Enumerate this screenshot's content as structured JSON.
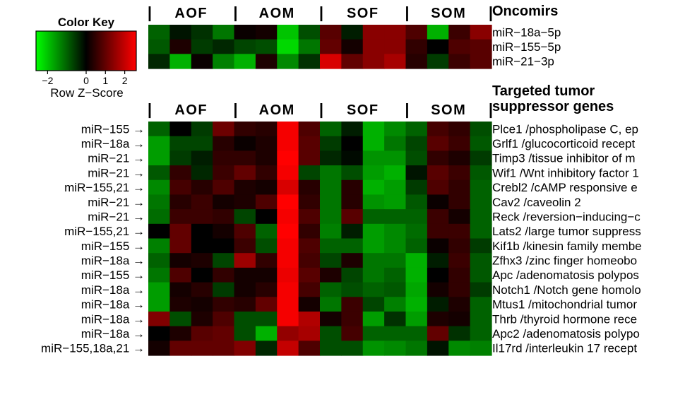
{
  "chart_data": {
    "type": "heatmap",
    "groups": [
      "AOF",
      "AOM",
      "SOF",
      "SOM"
    ],
    "group_separator": "|",
    "color_key": {
      "title": "Color Key",
      "label": "Row Z−Score",
      "ticks": [
        "−2",
        "0",
        "1",
        "2"
      ],
      "range": [
        -2.6,
        2.6
      ],
      "low_color": "#00ff00",
      "mid_color": "#000000",
      "high_color": "#ff0000"
    },
    "top_heatmap": {
      "title": "Oncomirs",
      "rows": [
        "miR−18a−5p",
        "miR−155−5p",
        "miR−21−3p"
      ],
      "values": [
        [
          -1.0,
          -0.2,
          -0.5,
          -1.2,
          0.1,
          0.2,
          -2.0,
          -0.8,
          0.9,
          -0.3,
          1.4,
          1.4,
          0.8,
          -1.8,
          0.6,
          1.4
        ],
        [
          -0.9,
          0.3,
          -0.6,
          -0.4,
          -0.7,
          -0.8,
          -2.2,
          -1.2,
          1.0,
          0.2,
          1.4,
          1.4,
          0.5,
          0.0,
          0.8,
          0.9
        ],
        [
          -0.4,
          -1.8,
          0.1,
          -1.3,
          -1.8,
          0.3,
          -1.4,
          -0.5,
          2.2,
          1.0,
          1.4,
          1.7,
          0.4,
          -0.6,
          0.6,
          0.9
        ]
      ]
    },
    "bottom_heatmap": {
      "title_line1": "Targeted tumor",
      "title_line2": "suppressor genes",
      "row_labels": [
        "miR−155 →",
        "miR−18a →",
        "miR−21 →",
        "miR−21 →",
        "miR−155,21 →",
        "miR−21 →",
        "miR−21 →",
        "miR−155,21 →",
        "miR−155 →",
        "miR−18a →",
        "miR−155 →",
        "miR−18a →",
        "miR−18a →",
        "miR−18a →",
        "miR−18a →",
        "miR−155,18a,21 →"
      ],
      "rows": [
        "Plce1 /phospholipase C, ep",
        "Grlf1 /glucocorticoid recept",
        "Timp3 /tissue inhibitor of m",
        "Wif1 /Wnt inhibitory factor 1",
        "Crebl2 /cAMP responsive e",
        "Cav2 /caveolin 2",
        "Reck /reversion−inducing−c",
        "Lats2 /large tumor suppress",
        "Kif1b /kinesin family membe",
        "Zfhx3 /zinc finger homeobo",
        "Apc /adenomatosis polypos",
        "Notch1 /Notch gene homolo",
        "Mtus1 /mitochondrial tumor",
        "Thrb /thyroid hormone rece",
        "Apc2 /adenomatosis polypo",
        "Il17rd /interleukin 17 recept"
      ],
      "values": [
        [
          -1.0,
          0.0,
          -0.6,
          1.1,
          0.5,
          0.4,
          2.5,
          0.8,
          -1.0,
          -0.3,
          -1.8,
          -1.4,
          -1.0,
          0.7,
          0.5,
          -0.8
        ],
        [
          -1.6,
          -0.7,
          -0.7,
          0.4,
          0.1,
          0.3,
          2.5,
          0.9,
          -0.6,
          0.0,
          -1.8,
          -1.2,
          -0.7,
          0.9,
          0.6,
          -0.9
        ],
        [
          -1.6,
          -0.6,
          -0.3,
          0.5,
          0.5,
          0.3,
          2.6,
          0.9,
          -0.4,
          -0.1,
          -1.5,
          -1.5,
          -0.8,
          0.5,
          0.3,
          -0.6
        ],
        [
          -0.9,
          0.5,
          -0.4,
          0.6,
          1.0,
          0.5,
          2.5,
          -0.7,
          -1.2,
          -0.8,
          -1.6,
          -1.8,
          -0.2,
          0.9,
          0.6,
          -0.9
        ],
        [
          -1.4,
          0.7,
          0.4,
          0.8,
          0.3,
          0.2,
          2.2,
          0.4,
          -1.2,
          0.4,
          -1.8,
          -1.6,
          -0.6,
          0.8,
          0.5,
          -1.0
        ],
        [
          -1.2,
          0.4,
          0.6,
          0.2,
          0.3,
          0.8,
          2.6,
          0.5,
          -1.2,
          0.4,
          -1.5,
          -1.6,
          -0.9,
          0.1,
          0.5,
          -1.0
        ],
        [
          -1.1,
          0.6,
          0.6,
          0.5,
          -0.7,
          0.0,
          2.5,
          0.8,
          -1.2,
          0.9,
          -1.0,
          -1.0,
          -1.0,
          0.6,
          0.2,
          -1.0
        ],
        [
          0.0,
          1.0,
          0.0,
          0.2,
          0.8,
          -1.0,
          2.6,
          0.5,
          -1.3,
          -0.3,
          -1.6,
          -1.4,
          -1.1,
          0.6,
          0.6,
          -1.0
        ],
        [
          -1.3,
          1.0,
          0.0,
          0.0,
          0.6,
          -0.8,
          2.5,
          0.8,
          -1.0,
          -1.0,
          -1.6,
          -1.4,
          -1.0,
          0.1,
          0.5,
          -0.6
        ],
        [
          -1.0,
          0.2,
          0.3,
          -0.7,
          1.6,
          0.5,
          2.5,
          0.7,
          -0.7,
          0.3,
          -1.2,
          -1.2,
          -1.8,
          -0.3,
          0.6,
          -0.9
        ],
        [
          -1.2,
          0.8,
          0.0,
          0.5,
          0.2,
          0.2,
          2.4,
          0.9,
          0.3,
          -0.7,
          -1.2,
          -1.0,
          -1.8,
          0.0,
          0.5,
          -0.9
        ],
        [
          -1.6,
          0.2,
          0.4,
          -0.6,
          0.2,
          0.4,
          2.5,
          0.7,
          -1.0,
          -0.8,
          -1.0,
          -0.9,
          -1.7,
          0.2,
          0.5,
          -0.6
        ],
        [
          -1.6,
          0.3,
          0.2,
          0.5,
          0.4,
          1.0,
          2.5,
          0.2,
          -1.2,
          0.6,
          -0.7,
          -1.3,
          -1.8,
          -0.3,
          0.3,
          -1.0
        ],
        [
          1.3,
          -0.8,
          0.3,
          0.8,
          -0.8,
          -0.8,
          2.5,
          1.8,
          0.2,
          0.6,
          -1.6,
          -0.5,
          -1.6,
          0.3,
          0.2,
          -1.0
        ],
        [
          0.0,
          0.3,
          0.9,
          1.0,
          -0.8,
          -1.8,
          1.5,
          1.7,
          -0.8,
          0.7,
          -1.0,
          -1.0,
          -1.0,
          1.0,
          -0.5,
          -1.0
        ],
        [
          0.2,
          1.0,
          1.0,
          1.0,
          1.3,
          -0.4,
          2.0,
          0.8,
          -0.8,
          -0.8,
          -1.5,
          -1.4,
          -1.2,
          -0.2,
          -1.4,
          -1.3
        ]
      ]
    }
  }
}
